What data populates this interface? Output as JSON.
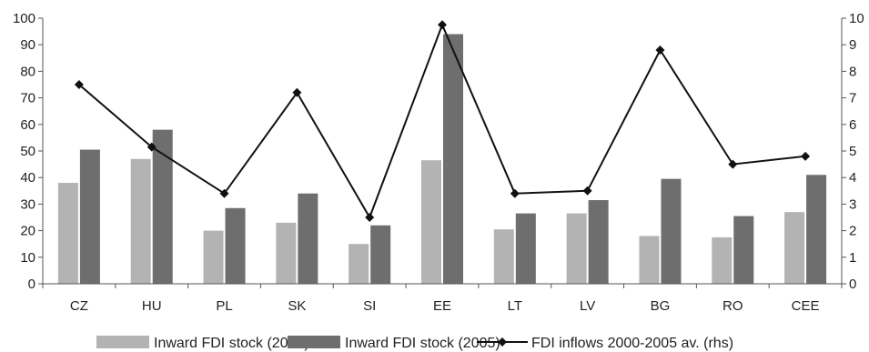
{
  "chart_data": {
    "type": "bar",
    "categories": [
      "CZ",
      "HU",
      "PL",
      "SK",
      "SI",
      "EE",
      "LT",
      "LV",
      "BG",
      "RO",
      "CEE"
    ],
    "series": [
      {
        "name": "Inward FDI stock (2000)",
        "type": "bar",
        "axis": "left",
        "color": "#b3b3b3",
        "values": [
          38,
          47,
          20,
          23,
          15,
          46.5,
          20.5,
          26.5,
          18,
          17.5,
          27
        ]
      },
      {
        "name": "Inward FDI stock (2005)",
        "type": "bar",
        "axis": "left",
        "color": "#6e6e6e",
        "values": [
          50.5,
          58,
          28.5,
          34,
          22,
          94,
          26.5,
          31.5,
          39.5,
          25.5,
          41
        ]
      },
      {
        "name": "FDI inflows 2000-2005 av. (rhs)",
        "type": "line",
        "axis": "right",
        "color": "#111111",
        "marker": "diamond",
        "values": [
          7.5,
          5.15,
          3.4,
          7.2,
          2.5,
          9.75,
          3.4,
          3.5,
          8.8,
          4.5,
          4.8
        ]
      }
    ],
    "ylim": [
      0,
      100
    ],
    "y2lim": [
      0,
      10
    ],
    "yticks": [
      "0",
      "10",
      "20",
      "30",
      "40",
      "50",
      "60",
      "70",
      "80",
      "90",
      "100"
    ],
    "y2ticks": [
      "0",
      "1",
      "2",
      "3",
      "4",
      "5",
      "6",
      "7",
      "8",
      "9",
      "10"
    ],
    "xlabel": "",
    "ylabel": "",
    "grid": false,
    "legend_position": "bottom"
  }
}
